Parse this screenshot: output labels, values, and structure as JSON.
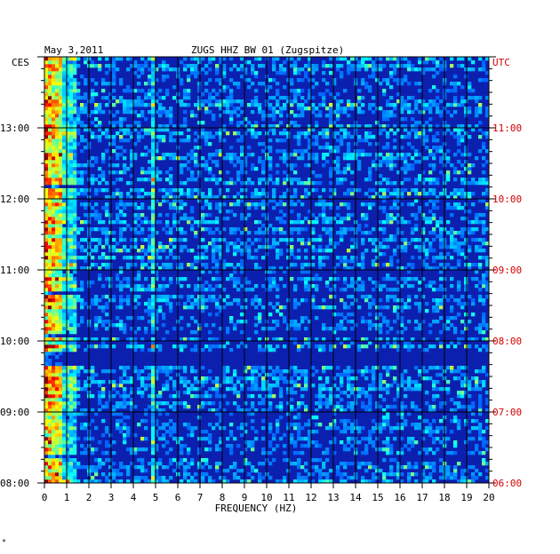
{
  "header": {
    "date": "May 3,2011",
    "station": "ZUGS HHZ BW 01 (Zugspitze)",
    "left_zone": "CES",
    "right_zone": "UTC"
  },
  "corner_mark": "*",
  "colors": {
    "utc_labels": "#d40000",
    "local_labels": "#000000",
    "spectrogram_low": "#0a1fa8",
    "spectrogram_high": "#e41a1c"
  },
  "chart_data": {
    "type": "heatmap",
    "title": "ZUGS HHZ BW 01 (Zugspitze)",
    "xlabel": "FREQUENCY (HZ)",
    "ylabel": "",
    "xlim": [
      0,
      20
    ],
    "x_ticks": [
      "0",
      "1",
      "2",
      "3",
      "4",
      "5",
      "6",
      "7",
      "8",
      "9",
      "10",
      "11",
      "12",
      "13",
      "14",
      "15",
      "16",
      "17",
      "18",
      "19",
      "20"
    ],
    "y_time_range": [
      "08:00",
      "14:00"
    ],
    "y_ticks_local": [
      "08:00",
      "09:00",
      "10:00",
      "11:00",
      "12:00",
      "13:00"
    ],
    "y_ticks_utc": [
      "06:00",
      "07:00",
      "08:00",
      "09:00",
      "10:00",
      "11:00"
    ],
    "colormap": "jet (blue low, red high)",
    "grid": true,
    "notes_features": {
      "persistent_high_energy_band_hz": [
        0,
        0.8
      ],
      "narrow_line_hz": 4.9,
      "quiet_interval": [
        "09:40",
        "09:48"
      ]
    }
  }
}
